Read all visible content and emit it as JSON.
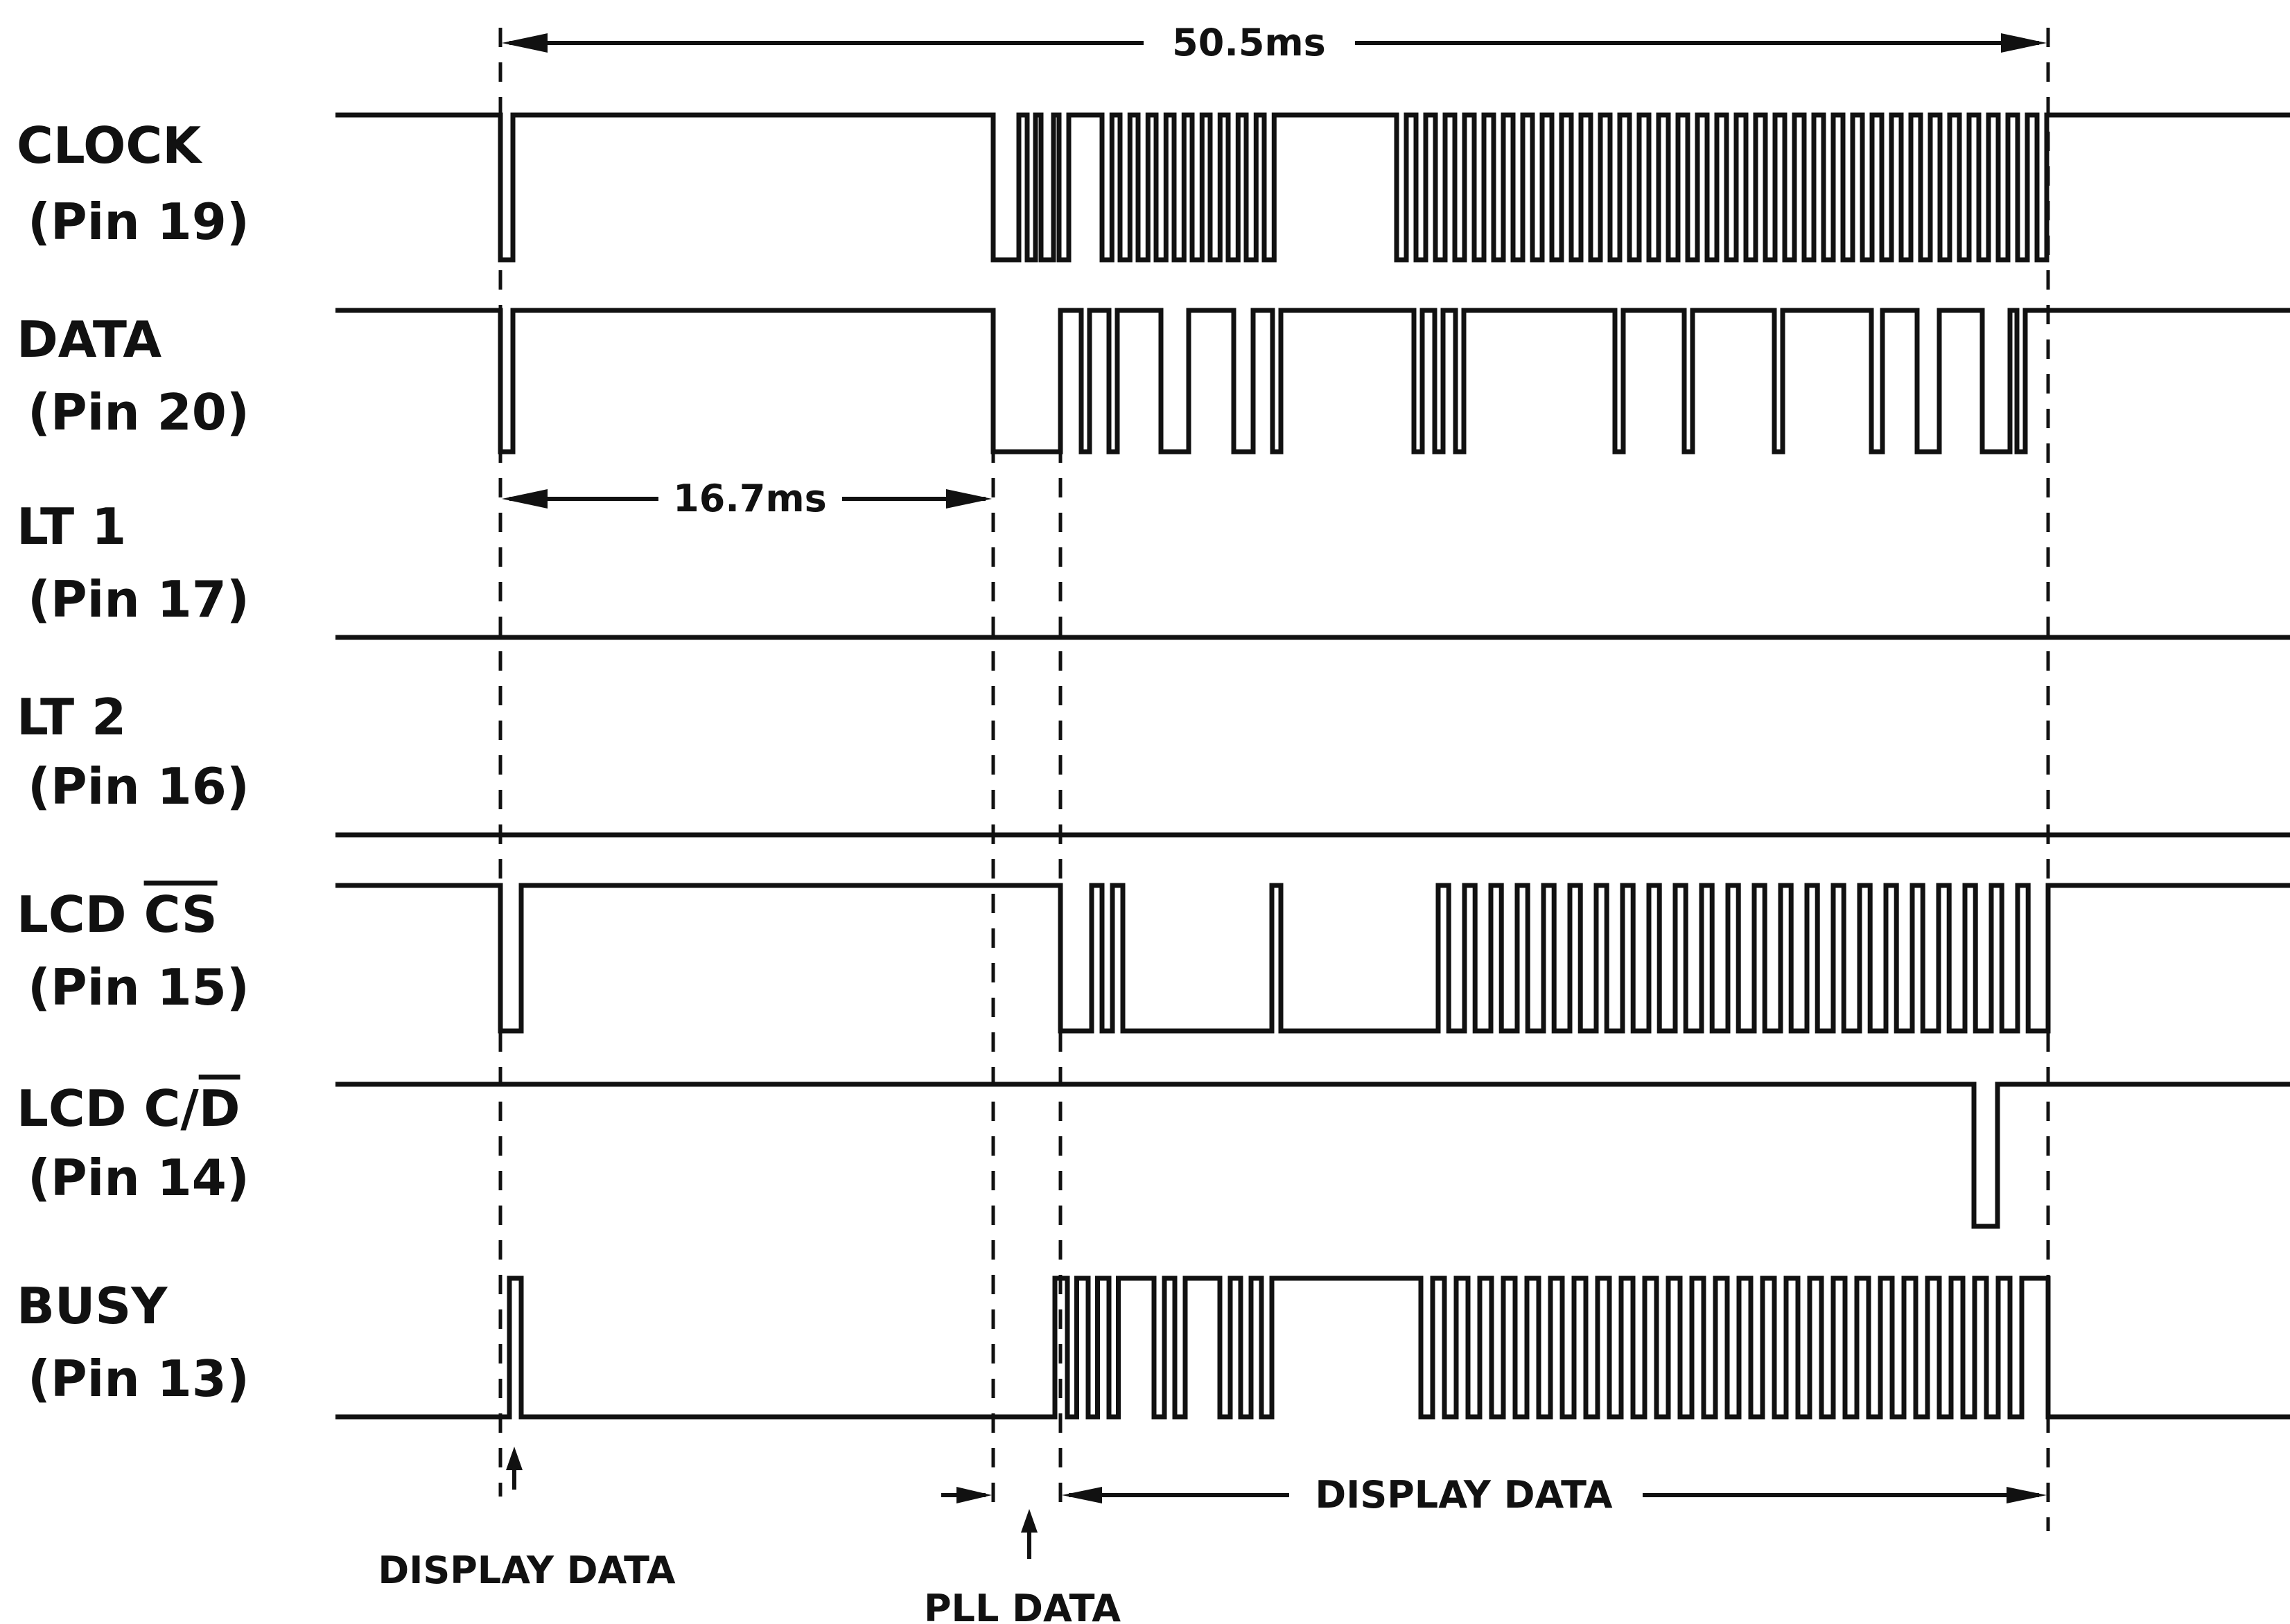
{
  "signals": [
    {
      "id": "clock",
      "name": "CLOCK",
      "pin": "(Pin 19)"
    },
    {
      "id": "data",
      "name": "DATA",
      "pin": "(Pin 20)"
    },
    {
      "id": "lt1",
      "name": "LT 1",
      "pin": "(Pin 17)"
    },
    {
      "id": "lt2",
      "name": "LT 2",
      "pin": "(Pin 16)"
    },
    {
      "id": "lcdcs",
      "name": "LCD ",
      "name_overbar": "CS",
      "pin": "(Pin 15)"
    },
    {
      "id": "lcdcd",
      "name": "LCD C/",
      "name_overbar": "D",
      "pin": "(Pin 14)"
    },
    {
      "id": "busy",
      "name": "BUSY",
      "pin": "(Pin 13)"
    }
  ],
  "annotations": {
    "period": "50.5ms",
    "delay": "16.7ms",
    "display_data_1": "DISPLAY DATA",
    "display_data_2": "DISPLAY DATA",
    "pll_data": "PLL DATA"
  },
  "colors": {
    "ink": "#111111",
    "paper": "#ffffff"
  }
}
